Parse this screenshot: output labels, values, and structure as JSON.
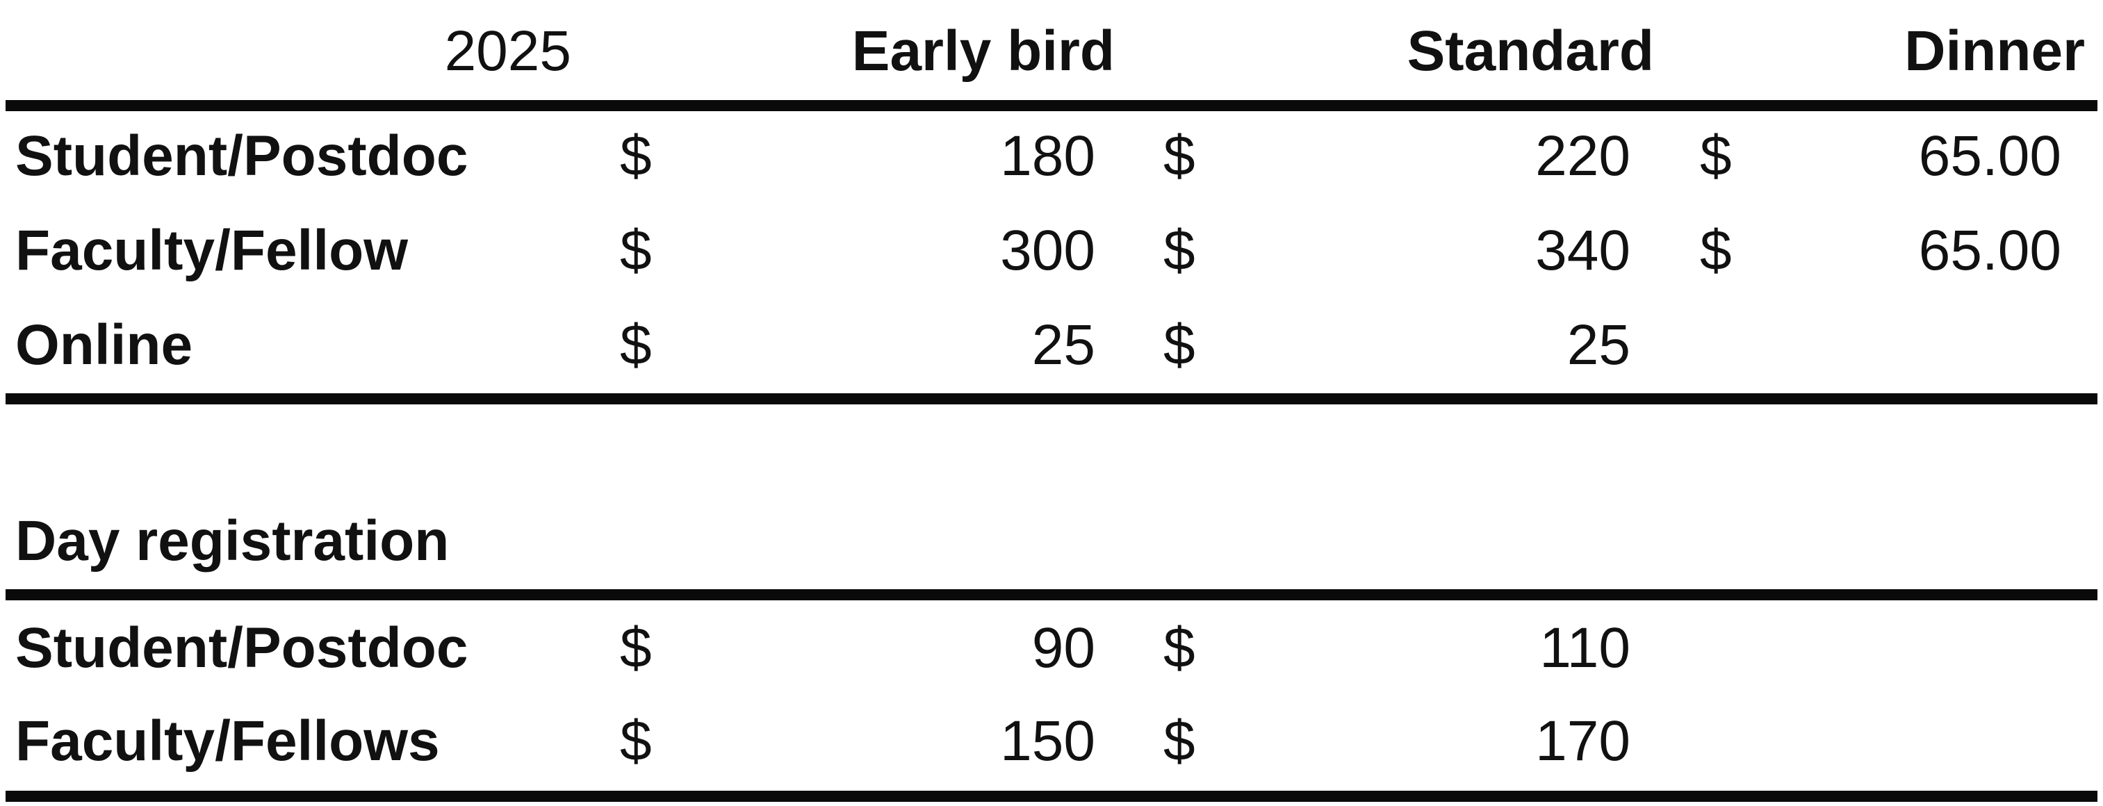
{
  "main_table": {
    "year": "2025",
    "columns": [
      "Early bird",
      "Standard",
      "Dinner"
    ],
    "currency_symbol": "$",
    "rows": [
      {
        "label": "Student/Postdoc",
        "early_bird": "180",
        "standard": "220",
        "dinner": "65.00"
      },
      {
        "label": "Faculty/Fellow",
        "early_bird": "300",
        "standard": "340",
        "dinner": "65.00"
      },
      {
        "label": "Online",
        "early_bird": "25",
        "standard": "25",
        "dinner": ""
      }
    ]
  },
  "day_table": {
    "title": "Day registration",
    "currency_symbol": "$",
    "rows": [
      {
        "label": "Student/Postdoc",
        "early_bird": "90",
        "standard": "110"
      },
      {
        "label": "Faculty/Fellows",
        "early_bird": "150",
        "standard": "170"
      }
    ]
  }
}
